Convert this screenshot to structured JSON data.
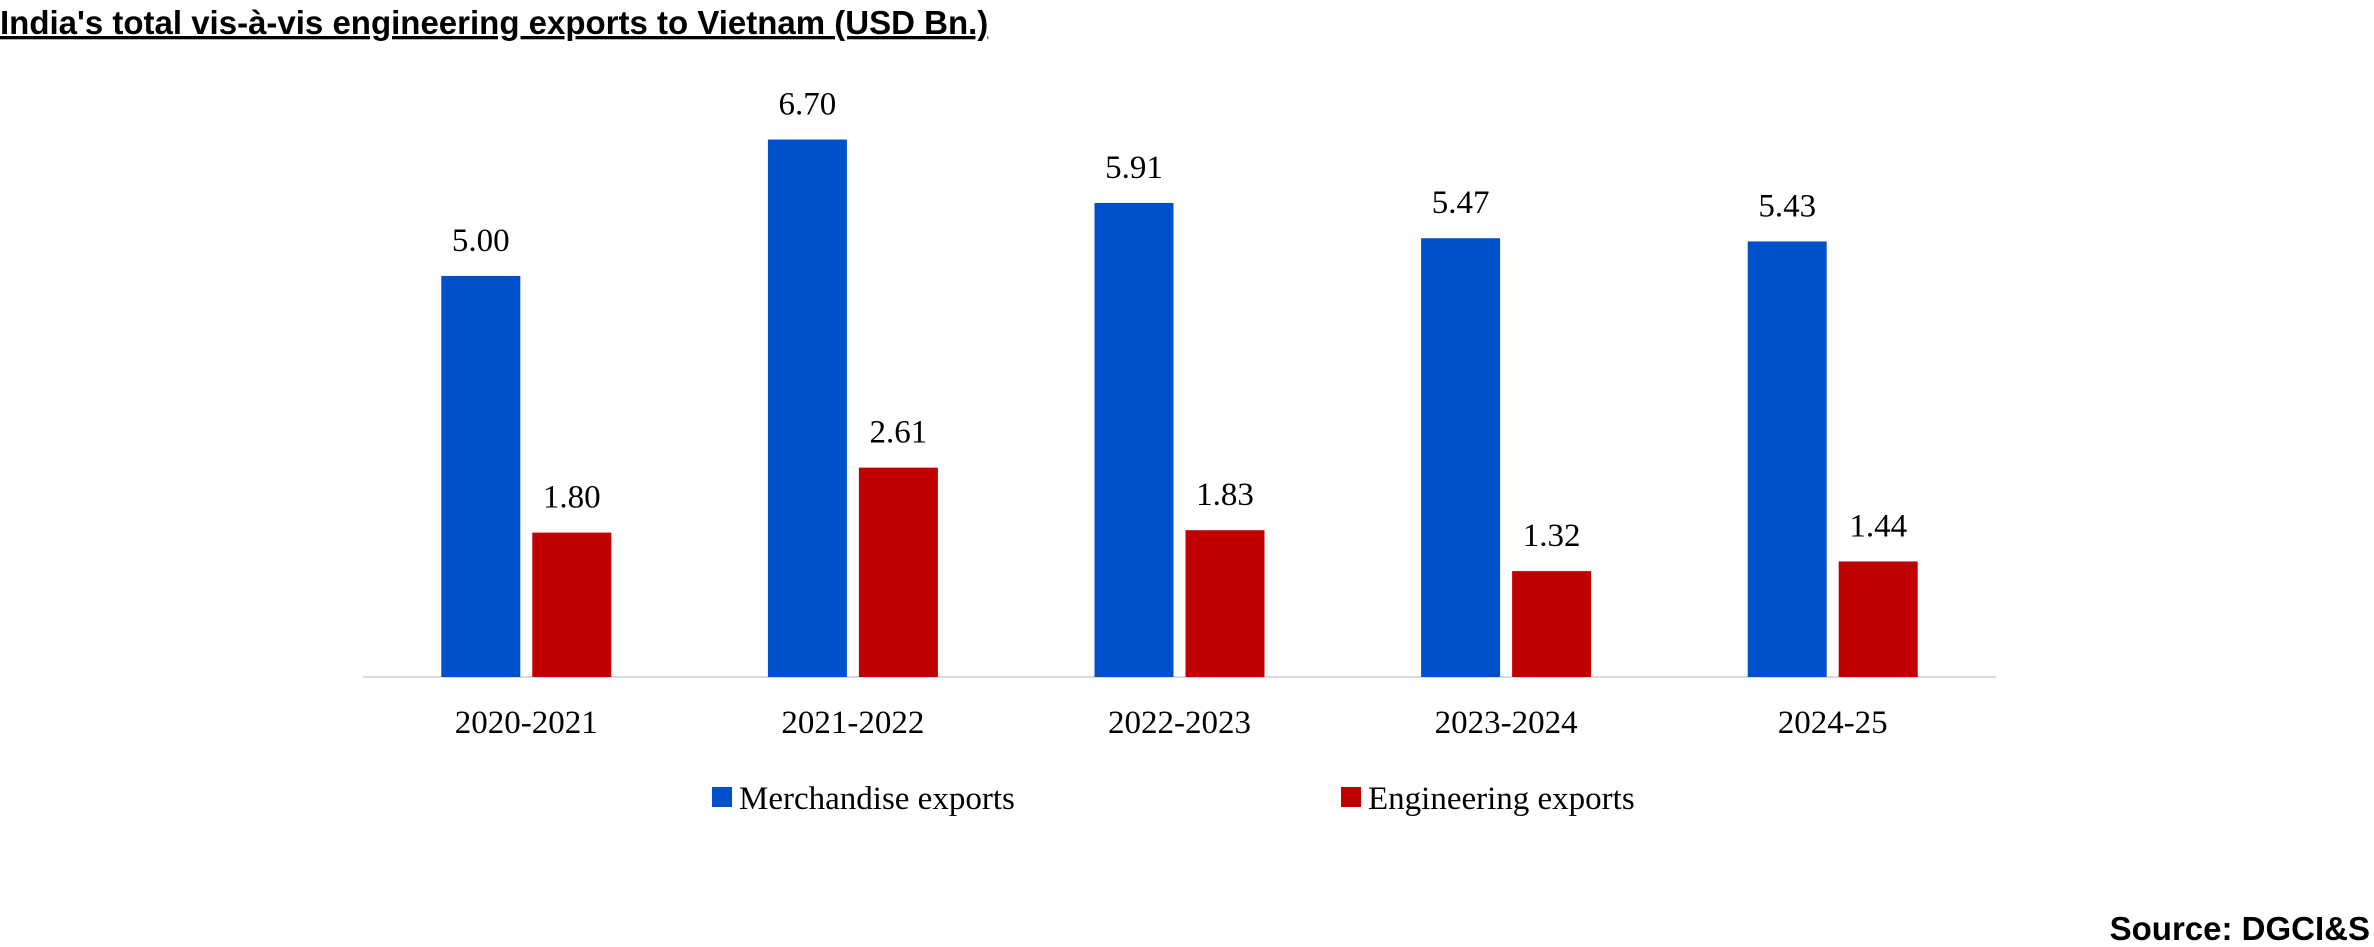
{
  "chart_data": {
    "type": "bar",
    "title": "India's total vis-à-vis engineering exports to Vietnam (USD Bn.)",
    "source": "Source: DGCI&S",
    "categories": [
      "2020-2021",
      "2021-2022",
      "2022-2023",
      "2023-2024",
      "2024-25"
    ],
    "series": [
      {
        "name": "Merchandise exports",
        "color": "#0050cc",
        "values": [
          5.0,
          6.7,
          5.91,
          5.47,
          5.43
        ],
        "value_labels": [
          "5.00",
          "6.70",
          "5.91",
          "5.47",
          "5.43"
        ]
      },
      {
        "name": "Engineering exports",
        "color": "#c00000",
        "values": [
          1.8,
          2.61,
          1.83,
          1.32,
          1.44
        ],
        "value_labels": [
          "1.80",
          "2.61",
          "1.83",
          "1.32",
          "1.44"
        ]
      }
    ],
    "ylim": [
      0,
      7
    ],
    "legend": "bottom"
  }
}
